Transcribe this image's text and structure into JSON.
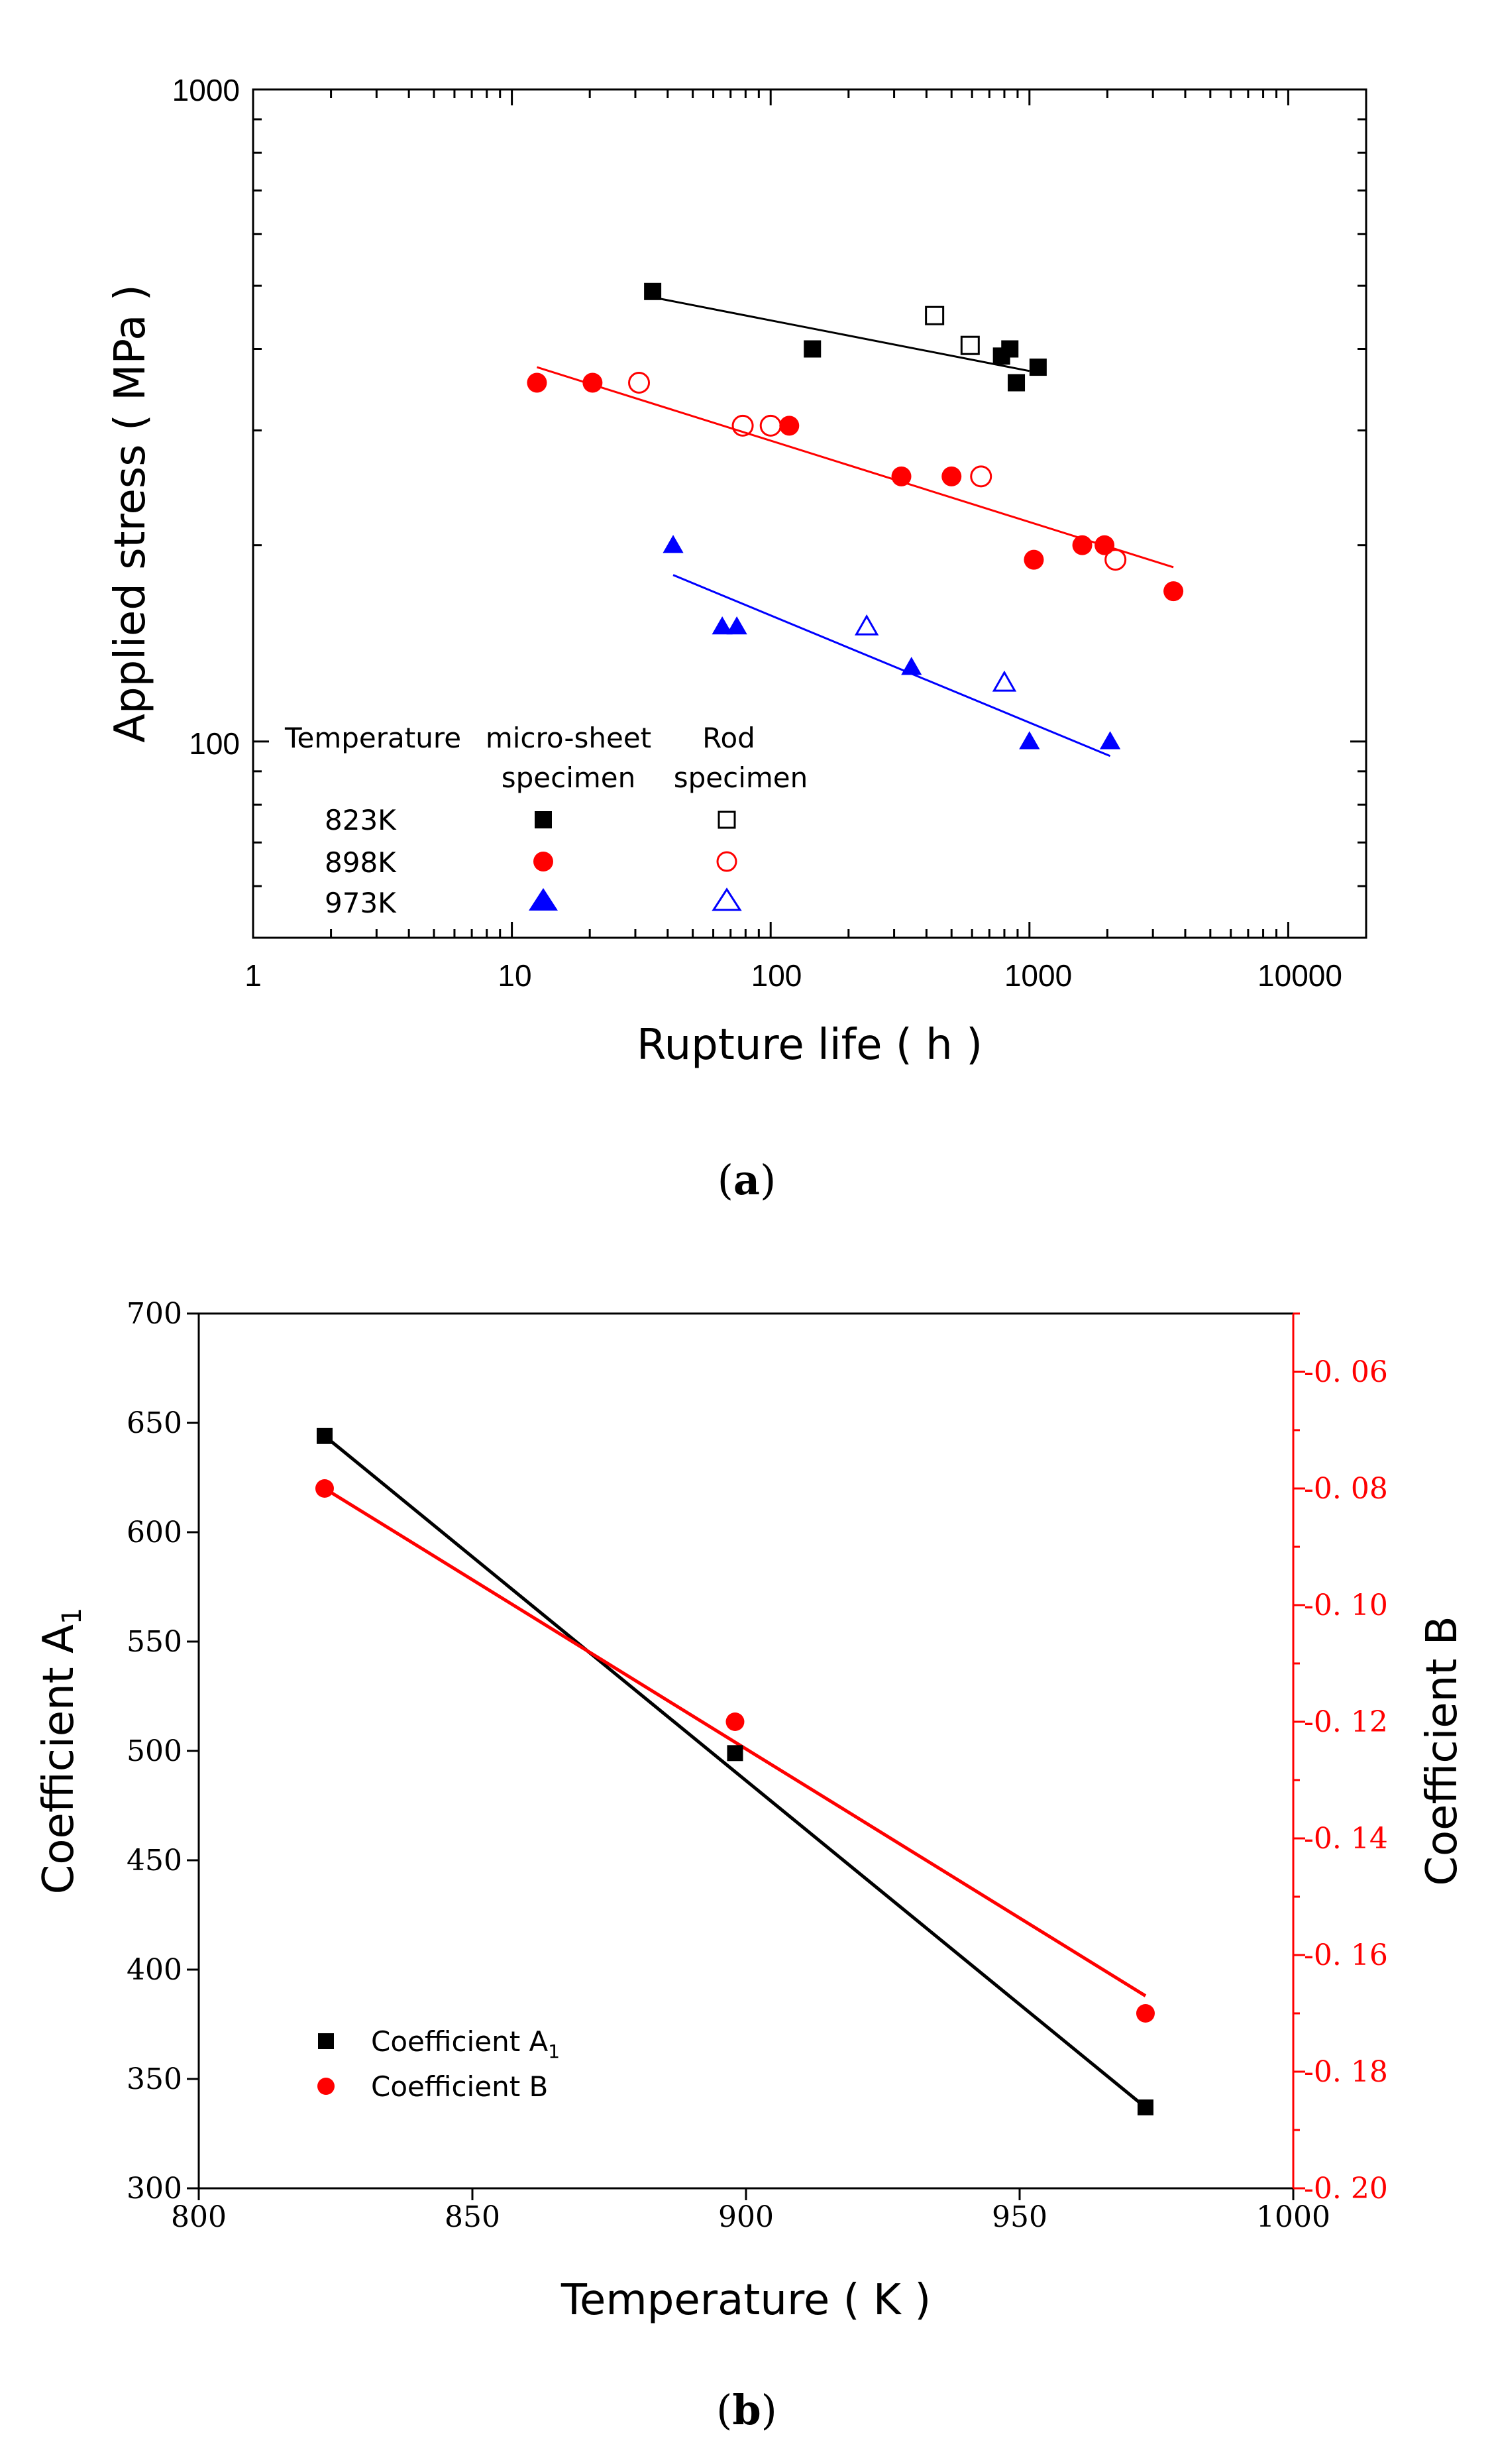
{
  "chart_data": [
    {
      "panel": "a",
      "type": "scatter",
      "xscale": "log",
      "yscale": "log",
      "xlim": [
        1,
        20000
      ],
      "ylim": [
        50,
        1000
      ],
      "xticks": [
        "1",
        "10",
        "100",
        "1000",
        "10000"
      ],
      "yticks": [
        "100",
        "1000"
      ],
      "xlabel": "Rupture life ( h )",
      "ylabel": "Applied stress ( MPa )",
      "caption": {
        "open": "(",
        "letter": "a",
        "close": ")"
      },
      "legend": {
        "header_temperature": "Temperature",
        "header_micro_line1": "micro-sheet",
        "header_micro_line2": "specimen",
        "header_rod_line1": "Rod",
        "header_rod_line2": "specimen",
        "rows": [
          "823K",
          "898K",
          "973K"
        ]
      },
      "series": [
        {
          "name": "823K micro-sheet specimen",
          "color": "#000000",
          "marker": "square",
          "filled": true,
          "points": [
            [
              35,
              490
            ],
            [
              145,
              400
            ],
            [
              780,
              390
            ],
            [
              840,
              400
            ],
            [
              890,
              355
            ],
            [
              1080,
              375
            ]
          ]
        },
        {
          "name": "823K rod specimen",
          "color": "#000000",
          "marker": "square",
          "filled": false,
          "points": [
            [
              430,
              450
            ],
            [
              590,
              405
            ]
          ]
        },
        {
          "name": "898K micro-sheet specimen",
          "color": "#ff0000",
          "marker": "circle",
          "filled": true,
          "points": [
            [
              12.5,
              355
            ],
            [
              20.5,
              355
            ],
            [
              118,
              305
            ],
            [
              320,
              255
            ],
            [
              500,
              255
            ],
            [
              1040,
              190
            ],
            [
              1600,
              200
            ],
            [
              1950,
              200
            ],
            [
              3600,
              170
            ]
          ]
        },
        {
          "name": "898K rod specimen",
          "color": "#ff0000",
          "marker": "circle",
          "filled": false,
          "points": [
            [
              31,
              355
            ],
            [
              78,
              305
            ],
            [
              100,
              305
            ],
            [
              650,
              255
            ],
            [
              2150,
              190
            ]
          ]
        },
        {
          "name": "973K micro-sheet specimen",
          "color": "#0000ff",
          "marker": "triangle",
          "filled": true,
          "points": [
            [
              42,
              200
            ],
            [
              65,
              150
            ],
            [
              74,
              150
            ],
            [
              350,
              130
            ],
            [
              1000,
              100
            ],
            [
              2050,
              100
            ]
          ]
        },
        {
          "name": "973K rod specimen",
          "color": "#0000ff",
          "marker": "triangle",
          "filled": false,
          "points": [
            [
              235,
              150
            ],
            [
              800,
              123
            ]
          ]
        }
      ],
      "fits": [
        {
          "name": "823K fit",
          "color": "#000000",
          "from": [
            35,
            480
          ],
          "to": [
            1000,
            370
          ]
        },
        {
          "name": "898K fit",
          "color": "#ff0000",
          "from": [
            12.5,
            375
          ],
          "to": [
            3600,
            185
          ]
        },
        {
          "name": "973K fit",
          "color": "#0000ff",
          "from": [
            42,
            180
          ],
          "to": [
            2050,
            95
          ]
        }
      ]
    },
    {
      "panel": "b",
      "type": "line",
      "xlim": [
        800,
        1000
      ],
      "ylim_left": [
        300,
        700
      ],
      "ylim_right": [
        -0.2,
        -0.05
      ],
      "xticks": [
        "800",
        "850",
        "900",
        "950",
        "1000"
      ],
      "yticks_left": [
        "300",
        "350",
        "400",
        "450",
        "500",
        "550",
        "600",
        "650",
        "700"
      ],
      "yticks_right": [
        "-0. 20",
        "-0. 18",
        "-0. 16",
        "-0. 14",
        "-0. 12",
        "-0. 10",
        "-0. 08",
        "-0. 06"
      ],
      "xlabel": "Temperature ( K )",
      "ylabel_left": "Coefficient A",
      "ylabel_left_sub": "1",
      "ylabel_right": "Coefficient B",
      "caption": {
        "open": "(",
        "letter": "b",
        "close": ")"
      },
      "legend": [
        {
          "label": "Coefficient A",
          "sub": "1",
          "color": "#000000",
          "marker": "square"
        },
        {
          "label": "Coefficient B",
          "sub": "",
          "color": "#ff0000",
          "marker": "circle"
        }
      ],
      "series": [
        {
          "name": "Coefficient A1",
          "axis": "left",
          "color": "#000000",
          "marker": "square",
          "x": [
            823,
            898,
            973
          ],
          "y": [
            644,
            499,
            337
          ],
          "fit": {
            "from": [
              823,
              644
            ],
            "to": [
              973,
              337
            ]
          }
        },
        {
          "name": "Coefficient B",
          "axis": "right",
          "color": "#ff0000",
          "marker": "circle",
          "x": [
            823,
            898,
            973
          ],
          "y": [
            -0.08,
            -0.12,
            -0.17
          ],
          "fit": {
            "from": [
              823,
              -0.08
            ],
            "to": [
              973,
              -0.167
            ]
          }
        }
      ]
    }
  ]
}
